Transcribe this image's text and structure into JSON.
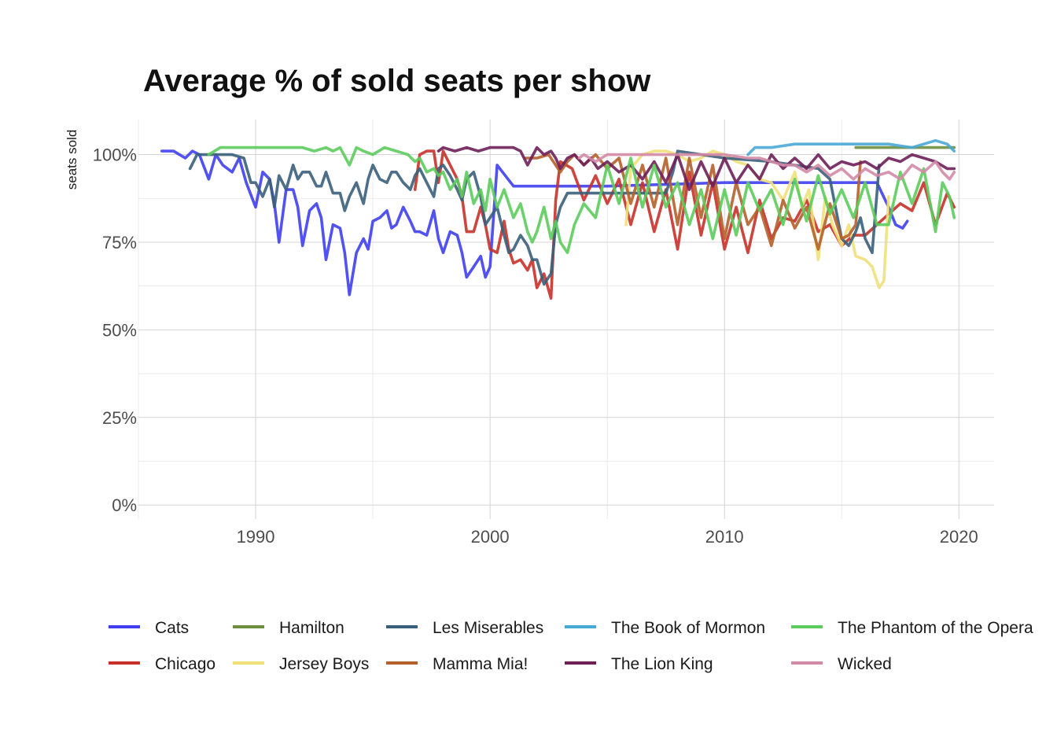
{
  "chart_data": {
    "type": "line",
    "title": "Average % of sold seats per show",
    "xlabel": "",
    "ylabel": "seats sold",
    "xlim": [
      1985,
      2021.5
    ],
    "ylim": [
      -0.04,
      1.1
    ],
    "x_ticks": [
      1990,
      2000,
      2010,
      2020
    ],
    "x_tick_labels": [
      "1990",
      "2000",
      "2010",
      "2020"
    ],
    "y_ticks": [
      0,
      0.25,
      0.5,
      0.75,
      1.0
    ],
    "y_tick_labels": [
      "0%",
      "25%",
      "50%",
      "75%",
      "100%"
    ],
    "grid": true,
    "legend_position": "bottom",
    "series": [
      {
        "name": "Cats",
        "color": "#3f3ff0",
        "x": [
          1986.0,
          1986.5,
          1987.0,
          1987.3,
          1987.6,
          1988.0,
          1988.3,
          1988.6,
          1989.0,
          1989.3,
          1989.6,
          1990.0,
          1990.3,
          1990.6,
          1990.8,
          1991.0,
          1991.3,
          1991.6,
          1991.8,
          1992.0,
          1992.3,
          1992.6,
          1992.8,
          1993.0,
          1993.3,
          1993.6,
          1993.8,
          1994.0,
          1994.3,
          1994.6,
          1994.8,
          1995.0,
          1995.3,
          1995.6,
          1995.8,
          1996.0,
          1996.3,
          1996.6,
          1996.8,
          1997.0,
          1997.3,
          1997.6,
          1997.8,
          1998.0,
          1998.3,
          1998.6,
          1998.8,
          1999.0,
          1999.3,
          1999.6,
          1999.8,
          2000.0,
          2000.3,
          2001.0,
          2005.0,
          2010.0,
          2016.5,
          2017.0,
          2017.3,
          2017.6,
          2017.8
        ],
        "y": [
          1.01,
          1.01,
          0.99,
          1.01,
          1.0,
          0.93,
          1.0,
          0.97,
          0.95,
          0.99,
          0.92,
          0.85,
          0.95,
          0.93,
          0.86,
          0.75,
          0.9,
          0.9,
          0.85,
          0.74,
          0.84,
          0.86,
          0.82,
          0.7,
          0.8,
          0.79,
          0.72,
          0.6,
          0.72,
          0.76,
          0.73,
          0.81,
          0.82,
          0.84,
          0.79,
          0.8,
          0.85,
          0.81,
          0.78,
          0.78,
          0.77,
          0.84,
          0.76,
          0.72,
          0.78,
          0.77,
          0.72,
          0.65,
          0.68,
          0.71,
          0.65,
          0.68,
          0.97,
          0.91,
          0.91,
          0.92,
          0.92,
          0.85,
          0.8,
          0.79,
          0.81
        ]
      },
      {
        "name": "Chicago",
        "color": "#c8312a",
        "x": [
          1996.8,
          1997.0,
          1997.3,
          1997.6,
          1997.8,
          1998.0,
          1998.3,
          1998.6,
          1998.8,
          1999.0,
          1999.3,
          1999.6,
          1999.8,
          2000.0,
          2000.3,
          2000.6,
          2000.8,
          2001.0,
          2001.3,
          2001.6,
          2001.8,
          2002.0,
          2002.3,
          2002.6,
          2002.8,
          2003.0,
          2003.5,
          2004.0,
          2004.5,
          2005.0,
          2005.5,
          2006.0,
          2006.5,
          2007.0,
          2007.5,
          2008.0,
          2008.5,
          2009.0,
          2009.5,
          2010.0,
          2010.5,
          2011.0,
          2011.5,
          2012.0,
          2012.5,
          2013.0,
          2013.5,
          2014.0,
          2014.5,
          2015.0,
          2015.5,
          2016.0,
          2016.5,
          2017.0,
          2017.5,
          2018.0,
          2018.5,
          2019.0,
          2019.5,
          2019.8
        ],
        "y": [
          0.9,
          1.0,
          1.01,
          1.01,
          0.92,
          1.01,
          0.97,
          0.93,
          0.88,
          0.78,
          0.78,
          0.85,
          0.8,
          0.73,
          0.72,
          0.81,
          0.73,
          0.69,
          0.7,
          0.67,
          0.7,
          0.62,
          0.66,
          0.59,
          0.87,
          0.98,
          0.96,
          0.87,
          0.94,
          0.86,
          0.93,
          0.8,
          0.92,
          0.78,
          0.9,
          0.73,
          0.95,
          0.77,
          0.92,
          0.73,
          0.85,
          0.72,
          0.87,
          0.76,
          0.82,
          0.81,
          0.87,
          0.78,
          0.8,
          0.74,
          0.77,
          0.77,
          0.8,
          0.83,
          0.86,
          0.84,
          0.92,
          0.8,
          0.89,
          0.85
        ]
      },
      {
        "name": "Hamilton",
        "color": "#6b8f3e",
        "x": [
          2015.6,
          2016.0,
          2017.0,
          2018.0,
          2019.0,
          2019.8
        ],
        "y": [
          1.02,
          1.02,
          1.02,
          1.02,
          1.02,
          1.02
        ]
      },
      {
        "name": "Jersey Boys",
        "color": "#f0e07a",
        "x": [
          2005.8,
          2006.0,
          2006.5,
          2007.0,
          2007.5,
          2008.0,
          2008.5,
          2009.0,
          2009.5,
          2010.0,
          2010.5,
          2011.0,
          2011.5,
          2012.0,
          2012.5,
          2013.0,
          2013.3,
          2013.6,
          2014.0,
          2014.3,
          2014.6,
          2015.0,
          2015.3,
          2015.6,
          2016.0,
          2016.3,
          2016.6,
          2016.8,
          2017.0
        ],
        "y": [
          0.8,
          0.96,
          1.0,
          1.01,
          1.01,
          1.0,
          0.98,
          0.99,
          1.01,
          1.0,
          0.98,
          0.97,
          0.93,
          0.92,
          0.87,
          0.95,
          0.85,
          0.9,
          0.7,
          0.88,
          0.8,
          0.74,
          0.8,
          0.71,
          0.7,
          0.68,
          0.62,
          0.64,
          0.88
        ]
      },
      {
        "name": "Les Miserables",
        "color": "#3a5f7a",
        "x": [
          1987.2,
          1987.5,
          1988.0,
          1988.5,
          1989.0,
          1989.5,
          1989.8,
          1990.0,
          1990.3,
          1990.6,
          1990.8,
          1991.0,
          1991.3,
          1991.6,
          1991.8,
          1992.0,
          1992.3,
          1992.6,
          1992.8,
          1993.0,
          1993.3,
          1993.6,
          1993.8,
          1994.0,
          1994.3,
          1994.6,
          1994.8,
          1995.0,
          1995.3,
          1995.6,
          1995.8,
          1996.0,
          1996.3,
          1996.6,
          1996.8,
          1997.0,
          1997.3,
          1997.6,
          1997.8,
          1998.0,
          1998.3,
          1998.6,
          1998.8,
          1999.0,
          1999.3,
          1999.6,
          1999.8,
          2000.0,
          2000.3,
          2000.6,
          2000.8,
          2001.0,
          2001.3,
          2001.6,
          2001.8,
          2002.0,
          2002.3,
          2002.6,
          2002.8,
          2003.0,
          2003.3,
          2005.0,
          2007.5,
          2007.8,
          2008.0,
          2010.0,
          2012.0,
          2014.0,
          2014.5,
          2015.0,
          2015.3,
          2015.6,
          2015.8,
          2016.0,
          2016.3,
          2016.6
        ],
        "y": [
          0.96,
          1.0,
          1.0,
          1.0,
          1.0,
          0.99,
          0.92,
          0.92,
          0.88,
          0.93,
          0.85,
          0.94,
          0.9,
          0.97,
          0.93,
          0.95,
          0.95,
          0.91,
          0.91,
          0.95,
          0.89,
          0.89,
          0.84,
          0.88,
          0.92,
          0.86,
          0.93,
          0.97,
          0.93,
          0.92,
          0.95,
          0.95,
          0.92,
          0.9,
          0.94,
          0.96,
          0.92,
          0.88,
          0.96,
          0.97,
          0.94,
          0.9,
          0.87,
          0.93,
          0.95,
          0.88,
          0.8,
          0.82,
          0.85,
          0.77,
          0.72,
          0.73,
          0.77,
          0.74,
          0.7,
          0.7,
          0.63,
          0.66,
          0.8,
          0.85,
          0.89,
          0.89,
          0.89,
          0.95,
          1.01,
          0.99,
          0.98,
          0.96,
          0.93,
          0.76,
          0.74,
          0.78,
          0.82,
          0.76,
          0.72,
          0.97
        ]
      },
      {
        "name": "Mamma Mia!",
        "color": "#b5602b",
        "x": [
          2001.5,
          2002.0,
          2002.5,
          2003.0,
          2003.3,
          2003.6,
          2004.0,
          2004.5,
          2005.0,
          2005.5,
          2006.0,
          2006.5,
          2007.0,
          2007.5,
          2008.0,
          2008.5,
          2009.0,
          2009.5,
          2010.0,
          2010.5,
          2011.0,
          2011.5,
          2012.0,
          2012.5,
          2013.0,
          2013.5,
          2014.0,
          2014.5,
          2015.0,
          2015.3,
          2015.6,
          2015.8
        ],
        "y": [
          0.99,
          0.99,
          1.0,
          0.95,
          0.98,
          1.0,
          0.97,
          1.0,
          0.96,
          0.99,
          0.86,
          0.97,
          0.85,
          0.99,
          0.8,
          0.99,
          0.82,
          0.97,
          0.76,
          0.92,
          0.8,
          0.85,
          0.74,
          0.87,
          0.79,
          0.85,
          0.73,
          0.86,
          0.76,
          0.77,
          0.8,
          0.98
        ]
      },
      {
        "name": "The Book of Mormon",
        "color": "#4aa8d6",
        "x": [
          2011.0,
          2011.3,
          2012.0,
          2013.0,
          2014.0,
          2015.0,
          2016.0,
          2017.0,
          2018.0,
          2018.5,
          2019.0,
          2019.5,
          2019.8
        ],
        "y": [
          1.0,
          1.02,
          1.02,
          1.03,
          1.03,
          1.03,
          1.03,
          1.03,
          1.02,
          1.03,
          1.04,
          1.03,
          1.01
        ]
      },
      {
        "name": "The Lion King",
        "color": "#6e1f58",
        "x": [
          1997.8,
          1998.0,
          1998.5,
          1999.0,
          1999.5,
          2000.0,
          2000.5,
          2001.0,
          2001.3,
          2001.6,
          2002.0,
          2002.3,
          2002.6,
          2002.8,
          2003.0,
          2003.3,
          2003.6,
          2004.0,
          2004.3,
          2004.6,
          2005.0,
          2005.5,
          2006.0,
          2006.5,
          2007.0,
          2007.5,
          2008.0,
          2008.5,
          2009.0,
          2009.5,
          2010.0,
          2010.5,
          2011.0,
          2011.5,
          2012.0,
          2012.5,
          2013.0,
          2013.5,
          2014.0,
          2014.5,
          2015.0,
          2015.5,
          2016.0,
          2016.5,
          2017.0,
          2017.5,
          2018.0,
          2018.5,
          2019.0,
          2019.5,
          2019.8
        ],
        "y": [
          1.01,
          1.02,
          1.01,
          1.02,
          1.01,
          1.02,
          1.02,
          1.02,
          1.01,
          0.97,
          1.02,
          1.0,
          1.01,
          0.99,
          0.96,
          0.99,
          1.0,
          0.97,
          0.99,
          0.96,
          0.98,
          0.95,
          0.97,
          0.93,
          0.98,
          0.92,
          1.0,
          0.9,
          0.98,
          0.91,
          0.99,
          0.92,
          0.97,
          0.93,
          1.0,
          0.96,
          0.99,
          0.96,
          1.0,
          0.96,
          0.98,
          0.97,
          0.98,
          0.96,
          0.99,
          0.98,
          1.0,
          0.99,
          0.98,
          0.96,
          0.96
        ]
      },
      {
        "name": "The Phantom of the Opera",
        "color": "#5ccc5c",
        "x": [
          1988.0,
          1988.5,
          1989.0,
          1990.0,
          1991.0,
          1992.0,
          1992.5,
          1993.0,
          1993.3,
          1993.6,
          1994.0,
          1994.3,
          1994.6,
          1995.0,
          1995.5,
          1996.0,
          1996.5,
          1996.8,
          1997.0,
          1997.3,
          1997.6,
          1997.8,
          1998.0,
          1998.3,
          1998.6,
          1998.8,
          1999.0,
          1999.3,
          1999.6,
          1999.8,
          2000.0,
          2000.3,
          2000.6,
          2000.8,
          2001.0,
          2001.3,
          2001.6,
          2001.8,
          2002.0,
          2002.3,
          2002.6,
          2002.8,
          2003.0,
          2003.3,
          2003.6,
          2004.0,
          2004.5,
          2005.0,
          2005.5,
          2006.0,
          2006.5,
          2007.0,
          2007.5,
          2008.0,
          2008.5,
          2009.0,
          2009.5,
          2010.0,
          2010.5,
          2011.0,
          2011.5,
          2012.0,
          2012.5,
          2013.0,
          2013.5,
          2014.0,
          2014.5,
          2015.0,
          2015.5,
          2016.0,
          2016.5,
          2017.0,
          2017.5,
          2018.0,
          2018.5,
          2019.0,
          2019.3,
          2019.6,
          2019.8
        ],
        "y": [
          1.0,
          1.02,
          1.02,
          1.02,
          1.02,
          1.02,
          1.01,
          1.02,
          1.01,
          1.02,
          0.97,
          1.02,
          1.01,
          1.0,
          1.02,
          1.01,
          1.0,
          0.98,
          0.99,
          0.95,
          0.96,
          0.94,
          0.95,
          0.9,
          0.93,
          0.88,
          0.95,
          0.86,
          0.9,
          0.84,
          0.93,
          0.85,
          0.9,
          0.86,
          0.82,
          0.86,
          0.78,
          0.75,
          0.78,
          0.85,
          0.76,
          0.81,
          0.75,
          0.72,
          0.8,
          0.86,
          0.82,
          0.97,
          0.86,
          0.99,
          0.85,
          0.97,
          0.85,
          0.92,
          0.8,
          0.9,
          0.76,
          0.9,
          0.77,
          0.92,
          0.84,
          0.9,
          0.8,
          0.93,
          0.81,
          0.94,
          0.83,
          0.9,
          0.82,
          0.92,
          0.8,
          0.8,
          0.95,
          0.86,
          0.96,
          0.78,
          0.92,
          0.88,
          0.82
        ]
      },
      {
        "name": "Wicked",
        "color": "#d48aa6",
        "x": [
          2003.8,
          2004.0,
          2004.5,
          2005.0,
          2006.0,
          2007.0,
          2008.0,
          2009.0,
          2010.0,
          2011.0,
          2011.5,
          2012.0,
          2012.5,
          2013.0,
          2013.5,
          2014.0,
          2014.5,
          2015.0,
          2015.5,
          2016.0,
          2016.5,
          2017.0,
          2017.5,
          2018.0,
          2018.5,
          2019.0,
          2019.3,
          2019.6,
          2019.8
        ],
        "y": [
          0.99,
          1.0,
          0.98,
          1.0,
          1.0,
          1.0,
          1.0,
          1.0,
          1.0,
          0.99,
          0.99,
          0.98,
          0.97,
          0.97,
          0.95,
          0.97,
          0.94,
          0.96,
          0.93,
          0.96,
          0.94,
          0.95,
          0.93,
          0.97,
          0.95,
          0.98,
          0.95,
          0.93,
          0.95
        ]
      }
    ]
  }
}
